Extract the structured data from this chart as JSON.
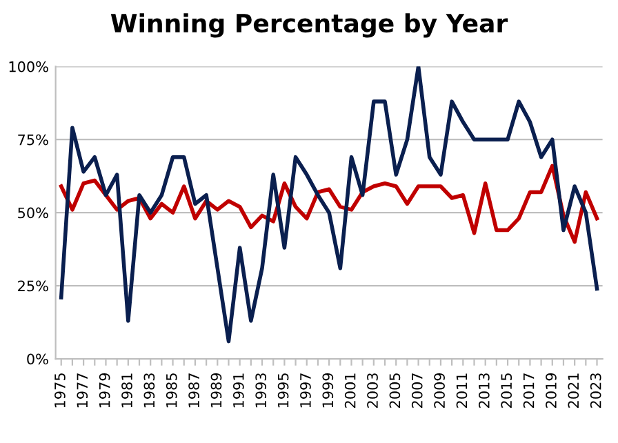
{
  "chart_data": {
    "type": "line",
    "title": "Winning Percentage by Year",
    "categories": [
      "1975",
      null,
      "1977",
      null,
      "1979",
      null,
      "1981",
      null,
      "1983",
      null,
      "1985",
      null,
      "1987",
      null,
      "1989",
      null,
      "1991",
      null,
      "1993",
      null,
      "1995",
      null,
      "1997",
      null,
      "1999",
      null,
      "2001",
      null,
      "2003",
      null,
      "2005",
      null,
      "2007",
      null,
      "2009",
      null,
      "2011",
      null,
      "2013",
      null,
      "2015",
      null,
      "2017",
      null,
      "2019",
      null,
      "2021",
      null,
      "2023"
    ],
    "series": [
      {
        "color": "#c00000",
        "values": [
          59,
          51,
          60,
          61,
          56,
          51,
          54,
          55,
          48,
          53,
          50,
          59,
          48,
          54,
          51,
          54,
          52,
          45,
          49,
          47,
          60,
          52,
          48,
          57,
          58,
          52,
          51,
          57,
          59,
          60,
          59,
          53,
          59,
          59,
          59,
          55,
          56,
          43,
          60,
          44,
          44,
          48,
          57,
          57,
          66,
          49,
          40,
          57,
          48
        ]
      },
      {
        "color": "#0a1f4f",
        "values": [
          21,
          79,
          64,
          69,
          56,
          63,
          13,
          56,
          50,
          56,
          69,
          69,
          53,
          56,
          31,
          6,
          38,
          13,
          31,
          63,
          38,
          69,
          63,
          56,
          50,
          31,
          69,
          56,
          88,
          88,
          63,
          75,
          100,
          69,
          63,
          88,
          81,
          75,
          75,
          75,
          75,
          88,
          81,
          69,
          75,
          44,
          59,
          50,
          24
        ]
      }
    ],
    "ylim": [
      0,
      100
    ],
    "yticks": [
      {
        "value": 0,
        "label": "0%"
      },
      {
        "value": 25,
        "label": "25%"
      },
      {
        "value": 50,
        "label": "50%"
      },
      {
        "value": 75,
        "label": "75%"
      },
      {
        "value": 100,
        "label": "100%"
      }
    ],
    "grid": "y",
    "legend": false,
    "marker": "none",
    "line_style": "solid"
  }
}
